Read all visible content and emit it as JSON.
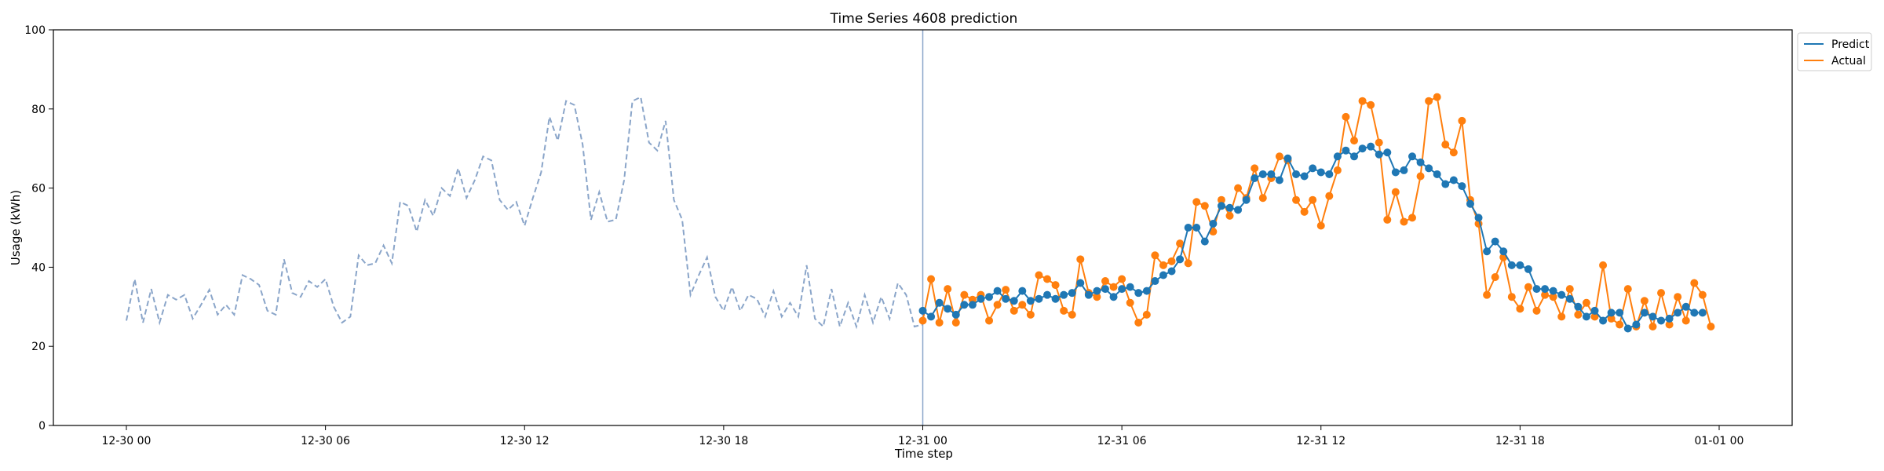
{
  "chart_data": {
    "type": "line",
    "title": "Time Series 4608 prediction",
    "xlabel": "Time step",
    "ylabel": "Usage (kWh)",
    "ylim": [
      0,
      100
    ],
    "yticks": [
      0,
      20,
      40,
      60,
      80,
      100
    ],
    "xlim": [
      "2023-12-29T21:48:00",
      "2024-01-01T02:12:00"
    ],
    "xticks": [
      {
        "t": "2023-12-30T00:00:00",
        "label": "12-30 00"
      },
      {
        "t": "2023-12-30T06:00:00",
        "label": "12-30 06"
      },
      {
        "t": "2023-12-30T12:00:00",
        "label": "12-30 12"
      },
      {
        "t": "2023-12-30T18:00:00",
        "label": "12-30 18"
      },
      {
        "t": "2023-12-31T00:00:00",
        "label": "12-31 00"
      },
      {
        "t": "2023-12-31T06:00:00",
        "label": "12-31 06"
      },
      {
        "t": "2023-12-31T12:00:00",
        "label": "12-31 12"
      },
      {
        "t": "2023-12-31T18:00:00",
        "label": "12-31 18"
      },
      {
        "t": "2024-01-01T00:00:00",
        "label": "01-01 00"
      }
    ],
    "interval_minutes": 15,
    "forecast_start": "2023-12-31T00:00:00",
    "grid": false,
    "legend_position": "upper-right-outside",
    "colors": {
      "history": "#8aa5c9",
      "predict": "#1f77b4",
      "actual": "#ff7f0e",
      "vline": "#8aa5c9"
    },
    "history": {
      "start": "2023-12-30T00:00:00",
      "values": [
        26.5,
        37.0,
        26.0,
        34.5,
        26.0,
        33.0,
        31.8,
        33.0,
        27.0,
        30.5,
        34.3,
        28.0,
        30.5,
        28.0,
        38.0,
        37.0,
        35.5,
        29.0,
        28.0,
        42.0,
        33.5,
        32.5,
        36.5,
        35.0,
        37.0,
        30.0,
        26.0,
        27.5,
        43.0,
        40.5,
        41.0,
        45.5,
        41.0,
        56.5,
        55.5,
        49.0,
        57.0,
        53.0,
        60.0,
        58.0,
        65.0,
        57.5,
        62.0,
        68.0,
        67.0,
        57.0,
        54.5,
        56.5,
        50.5,
        57.5,
        64.0,
        78.0,
        72.0,
        82.0,
        81.0,
        71.0,
        52.0,
        59.0,
        51.5,
        52.0,
        62.0,
        82.0,
        83.0,
        71.5,
        69.5,
        77.0,
        57.0,
        52.0,
        33.0,
        38.0,
        42.5,
        32.5,
        29.0,
        35.0,
        29.0,
        33.0,
        32.0,
        27.5,
        34.0,
        27.5,
        31.0,
        27.5,
        40.5,
        27.0,
        25.0,
        34.5,
        25.0,
        31.0,
        25.0,
        33.0,
        26.0,
        32.5,
        27.0,
        36.0,
        33.0,
        25.0,
        25.5
      ]
    },
    "series": [
      {
        "name": "Predict",
        "start": "2023-12-31T00:00:00",
        "values": [
          29.0,
          27.5,
          31.0,
          29.5,
          28.0,
          30.5,
          30.5,
          32.0,
          32.5,
          34.0,
          32.0,
          31.5,
          34.0,
          31.5,
          32.0,
          33.0,
          32.0,
          33.0,
          33.5,
          36.0,
          33.0,
          34.0,
          34.5,
          32.5,
          34.5,
          35.0,
          33.5,
          34.0,
          36.5,
          38.0,
          39.0,
          42.0,
          50.0,
          50.0,
          46.5,
          51.0,
          55.5,
          55.0,
          54.5,
          57.0,
          62.5,
          63.5,
          63.5,
          62.0,
          67.5,
          63.5,
          63.0,
          65.0,
          64.0,
          63.5,
          68.0,
          69.5,
          68.0,
          70.0,
          70.5,
          68.5,
          69.0,
          64.0,
          64.5,
          68.0,
          66.5,
          65.0,
          63.5,
          61.0,
          62.0,
          60.5,
          56.0,
          52.5,
          44.0,
          46.5,
          44.0,
          40.5,
          40.5,
          39.5,
          34.5,
          34.5,
          34.0,
          33.0,
          32.0,
          30.0,
          27.5,
          29.0,
          26.5,
          28.5,
          28.5,
          24.5,
          25.5,
          28.5,
          27.5,
          26.5,
          27.0,
          28.5,
          30.0,
          28.5,
          28.5
        ]
      },
      {
        "name": "Actual",
        "start": "2023-12-31T00:00:00",
        "values": [
          26.5,
          37.0,
          26.0,
          34.5,
          26.0,
          33.0,
          31.8,
          33.0,
          26.5,
          30.5,
          34.3,
          29.0,
          30.5,
          28.0,
          38.0,
          37.0,
          35.5,
          29.0,
          28.0,
          42.0,
          33.5,
          32.5,
          36.5,
          35.0,
          37.0,
          31.0,
          26.0,
          28.0,
          43.0,
          40.5,
          41.5,
          46.0,
          41.0,
          56.5,
          55.5,
          49.0,
          57.0,
          53.0,
          60.0,
          57.5,
          65.0,
          57.5,
          62.5,
          68.0,
          67.0,
          57.0,
          54.0,
          57.0,
          50.5,
          58.0,
          64.5,
          78.0,
          72.0,
          82.0,
          81.0,
          71.5,
          52.0,
          59.0,
          51.5,
          52.5,
          63.0,
          82.0,
          83.0,
          71.0,
          69.0,
          77.0,
          57.0,
          51.0,
          33.0,
          37.5,
          42.5,
          32.5,
          29.5,
          35.0,
          29.0,
          33.0,
          32.5,
          27.5,
          34.5,
          28.0,
          31.0,
          27.5,
          40.5,
          27.0,
          25.5,
          34.5,
          25.0,
          31.5,
          25.0,
          33.5,
          25.5,
          32.5,
          26.5,
          36.0,
          33.0,
          25.0
        ]
      }
    ]
  }
}
